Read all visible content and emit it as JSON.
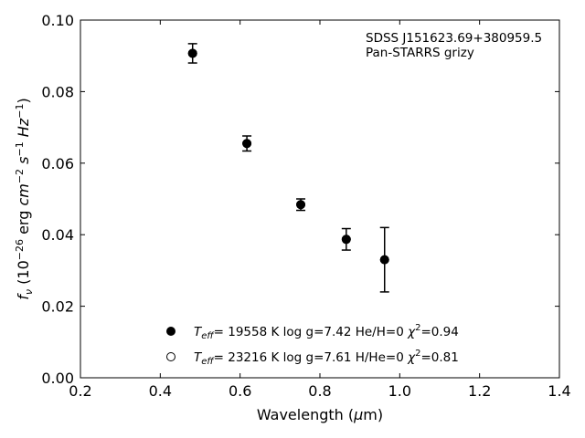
{
  "chart_data": {
    "type": "scatter",
    "xlabel": "Wavelength (μm)",
    "ylabel": "fν (10⁻²⁶ erg cm⁻² s⁻¹ Hz⁻¹)",
    "xlim": [
      0.2,
      1.4
    ],
    "ylim": [
      0.0,
      0.1
    ],
    "xticks": [
      "0.2",
      "0.4",
      "0.6",
      "0.8",
      "1.0",
      "1.2",
      "1.4"
    ],
    "yticks": [
      "0.00",
      "0.02",
      "0.04",
      "0.06",
      "0.08",
      "0.10"
    ],
    "annotation": [
      "SDSS J151623.69+380959.5",
      "Pan-STARRS grizy"
    ],
    "grid": false,
    "legend_position": "lower-center",
    "series": [
      {
        "name": "Teff= 19558 K  log g=7.42  He/H=0  χ2=0.94",
        "marker": "filled-circle",
        "color": "#000000",
        "points": [
          {
            "x": 0.481,
            "y": 0.0907,
            "err": 0.0027
          },
          {
            "x": 0.617,
            "y": 0.0655,
            "err": 0.0021
          },
          {
            "x": 0.752,
            "y": 0.0484,
            "err": 0.0016
          },
          {
            "x": 0.866,
            "y": 0.0387,
            "err": 0.003
          },
          {
            "x": 0.962,
            "y": 0.033,
            "err": 0.009
          }
        ]
      },
      {
        "name": "Teff= 23216 K  log g=7.61  H/He=0  χ2=0.81",
        "marker": "open-circle",
        "color": "#000000",
        "points": [
          {
            "x": 0.481,
            "y": 0.0907
          },
          {
            "x": 0.617,
            "y": 0.0655
          },
          {
            "x": 0.752,
            "y": 0.0484
          },
          {
            "x": 0.866,
            "y": 0.0387
          },
          {
            "x": 0.962,
            "y": 0.033
          }
        ]
      }
    ],
    "legend": [
      {
        "teff": "19558 K",
        "rest": "log g=7.42  He/H=0",
        "chi2": "=0.94"
      },
      {
        "teff": "23216 K",
        "rest": "log g=7.61  H/He=0",
        "chi2": "=0.81"
      }
    ]
  }
}
